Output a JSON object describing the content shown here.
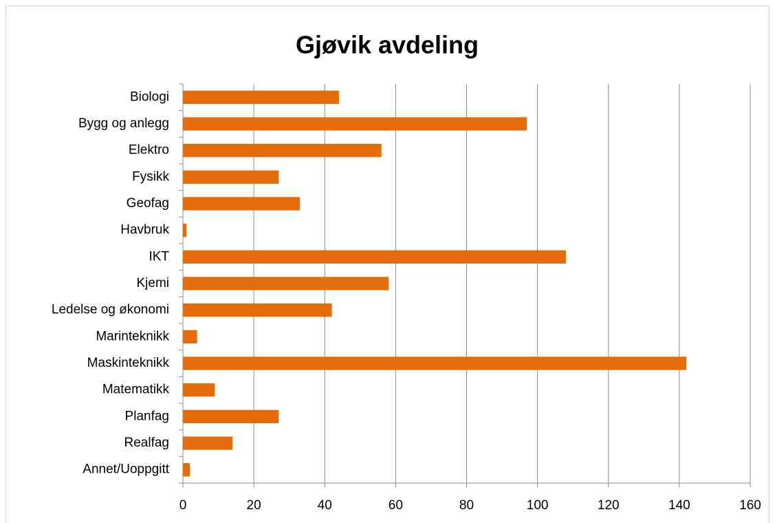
{
  "chart_data": {
    "type": "bar",
    "orientation": "horizontal",
    "title": "Gjøvik avdeling",
    "categories": [
      "Biologi",
      "Bygg og anlegg",
      "Elektro",
      "Fysikk",
      "Geofag",
      "Havbruk",
      "IKT",
      "Kjemi",
      "Ledelse og økonomi",
      "Marinteknikk",
      "Maskinteknikk",
      "Matematikk",
      "Planfag",
      "Realfag",
      "Annet/Uoppgitt"
    ],
    "values": [
      44,
      97,
      56,
      27,
      33,
      1,
      108,
      58,
      42,
      4,
      142,
      9,
      27,
      14,
      2
    ],
    "color": "#e46c0a",
    "xlim": [
      0,
      160
    ],
    "xticks": [
      0,
      20,
      40,
      60,
      80,
      100,
      120,
      140,
      160
    ],
    "grid": true
  }
}
